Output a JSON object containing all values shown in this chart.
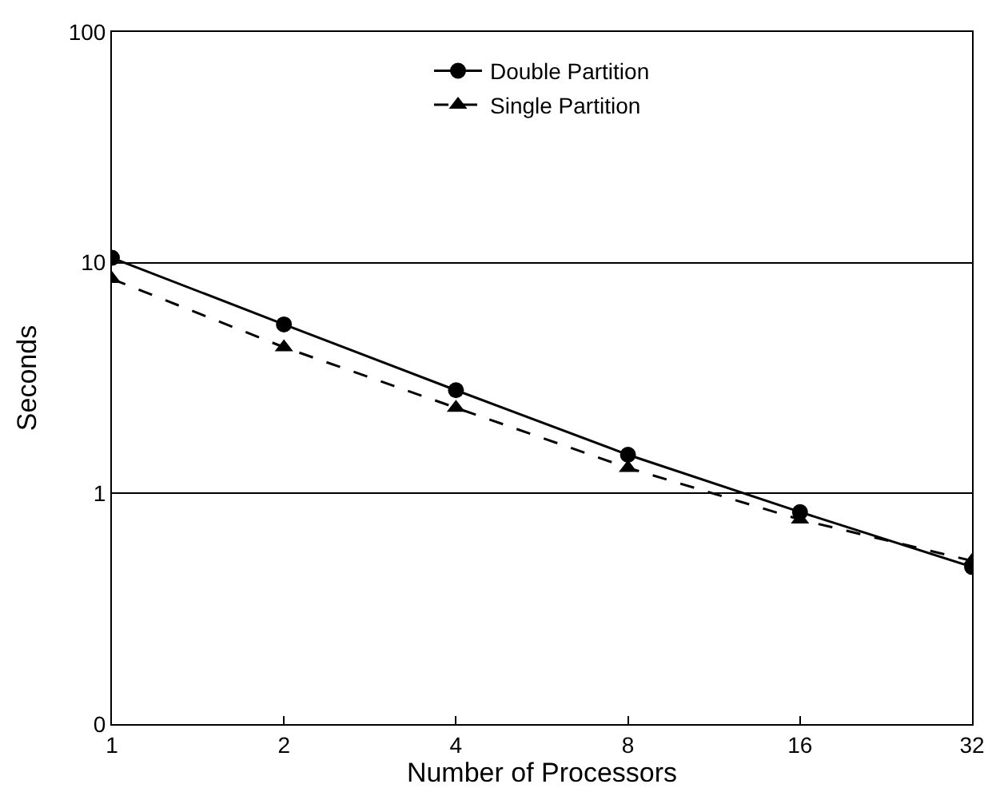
{
  "chart_data": {
    "type": "line",
    "xlabel": "Number of Processors",
    "ylabel": "Seconds",
    "x": [
      1,
      2,
      4,
      8,
      16,
      32
    ],
    "series": [
      {
        "name": "Double Partition",
        "color": "#000000",
        "marker": "circle",
        "line_style": "solid",
        "values": [
          10.5,
          5.4,
          2.8,
          1.47,
          0.83,
          0.48
        ]
      },
      {
        "name": "Single Partition",
        "color": "#000000",
        "marker": "triangle",
        "line_style": "dashed",
        "values": [
          8.5,
          4.3,
          2.35,
          1.29,
          0.77,
          0.51
        ]
      }
    ],
    "log": "xy",
    "xlim": [
      1,
      32
    ],
    "xticks": [
      1,
      2,
      4,
      8,
      16,
      32
    ],
    "ylim": [
      0.1,
      100
    ],
    "yticks": [
      {
        "value": 0.1,
        "label": "0"
      },
      1,
      10,
      100
    ],
    "grid": "y",
    "legend": "top"
  }
}
